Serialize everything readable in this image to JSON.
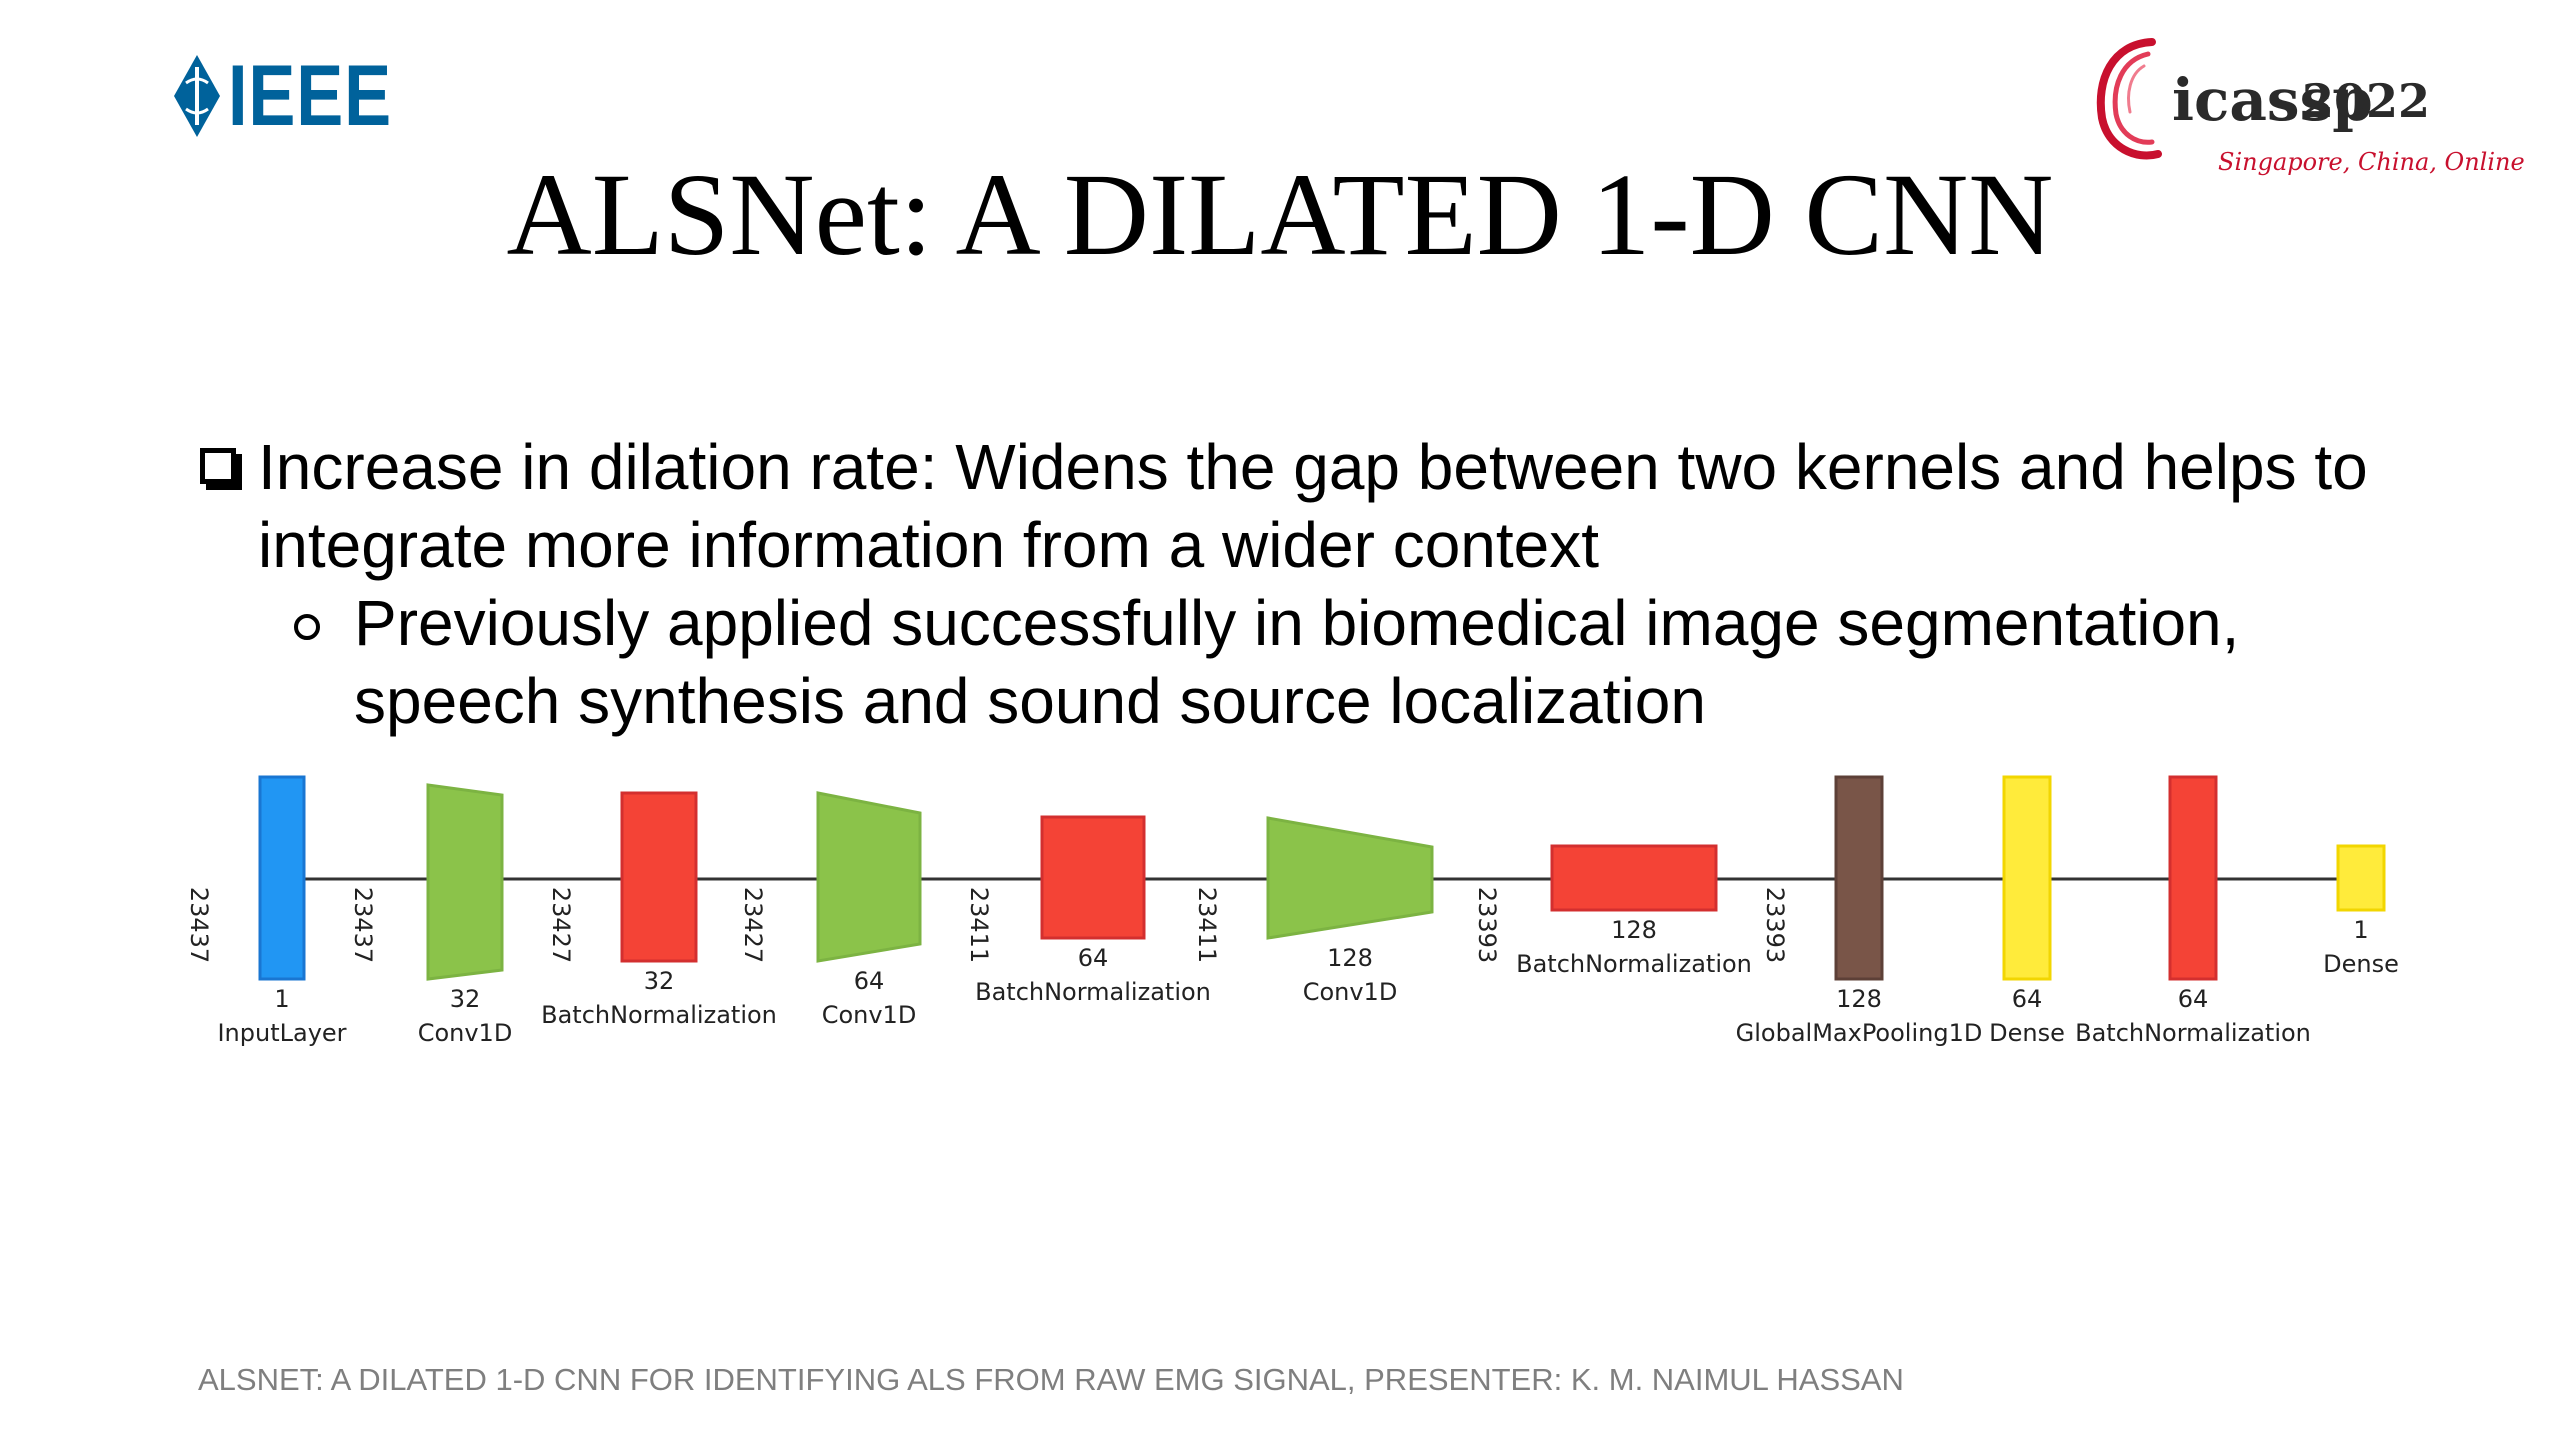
{
  "logos": {
    "ieee": {
      "text": "IEEE",
      "color": "#00629b",
      "icon": "ieee-diamond-icon"
    },
    "icassp": {
      "name": "icassp",
      "year": "2022",
      "subtitle": "Singapore, China, Online",
      "accent": "#c8102e",
      "icon": "icassp-swirl-icon"
    }
  },
  "title": "ALSNet: A DILATED 1-D CNN",
  "bullets": [
    {
      "text": "Increase in dilation rate: Widens the gap between two kernels and helps to integrate more information from a wider context",
      "sub": [
        {
          "text": "Previously applied successfully in biomedical image segmentation, speech synthesis and sound source localization"
        }
      ]
    }
  ],
  "diagram": {
    "colors": {
      "input": "#2196f3",
      "conv": "#8bc34a",
      "batchnorm": "#f44336",
      "pool": "#795548",
      "dense": "#ffeb3b",
      "edge": "#333333"
    },
    "layers": [
      {
        "type": "InputLayer",
        "units": "1",
        "kind": "input"
      },
      {
        "type": "Conv1D",
        "units": "32",
        "kind": "conv"
      },
      {
        "type": "BatchNormalization",
        "units": "32",
        "kind": "batchnorm"
      },
      {
        "type": "Conv1D",
        "units": "64",
        "kind": "conv"
      },
      {
        "type": "BatchNormalization",
        "units": "64",
        "kind": "batchnorm"
      },
      {
        "type": "Conv1D",
        "units": "128",
        "kind": "conv"
      },
      {
        "type": "BatchNormalization",
        "units": "128",
        "kind": "batchnorm"
      },
      {
        "type": "GlobalMaxPooling1D",
        "units": "128",
        "kind": "pool"
      },
      {
        "type": "Dense",
        "units": "64",
        "kind": "dense"
      },
      {
        "type": "BatchNormalization",
        "units": "64",
        "kind": "batchnorm"
      },
      {
        "type": "Dense",
        "units": "1",
        "kind": "dense"
      }
    ],
    "dims": [
      "23437",
      "23437",
      "23427",
      "23427",
      "23411",
      "23411",
      "23393",
      "23393"
    ]
  },
  "footer": "ALSNET: A DILATED 1-D CNN FOR IDENTIFYING ALS FROM RAW EMG SIGNAL, PRESENTER: K. M. NAIMUL HASSAN"
}
